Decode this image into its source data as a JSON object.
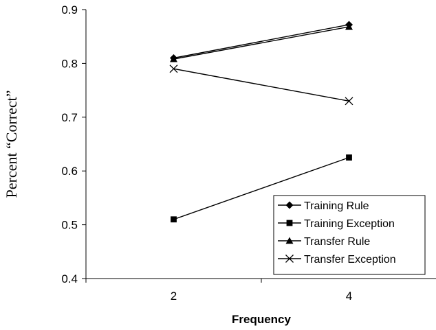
{
  "chart_data": {
    "type": "line",
    "title": "",
    "xlabel": "Frequency",
    "ylabel": "Percent  “Correct”",
    "categories": [
      "2",
      "4"
    ],
    "ylim": [
      0.4,
      0.9
    ],
    "yticks": [
      "0.4",
      "0.5",
      "0.6",
      "0.7",
      "0.8",
      "0.9"
    ],
    "grid": false,
    "legend_position": "bottom-right",
    "series": [
      {
        "name": "Training Rule",
        "marker": "diamond",
        "values": [
          0.81,
          0.872
        ]
      },
      {
        "name": "Training Exception",
        "marker": "square",
        "values": [
          0.51,
          0.625
        ]
      },
      {
        "name": "Transfer Rule",
        "marker": "triangle",
        "values": [
          0.808,
          0.868
        ]
      },
      {
        "name": "Transfer Exception",
        "marker": "x",
        "values": [
          0.79,
          0.73
        ]
      }
    ]
  }
}
